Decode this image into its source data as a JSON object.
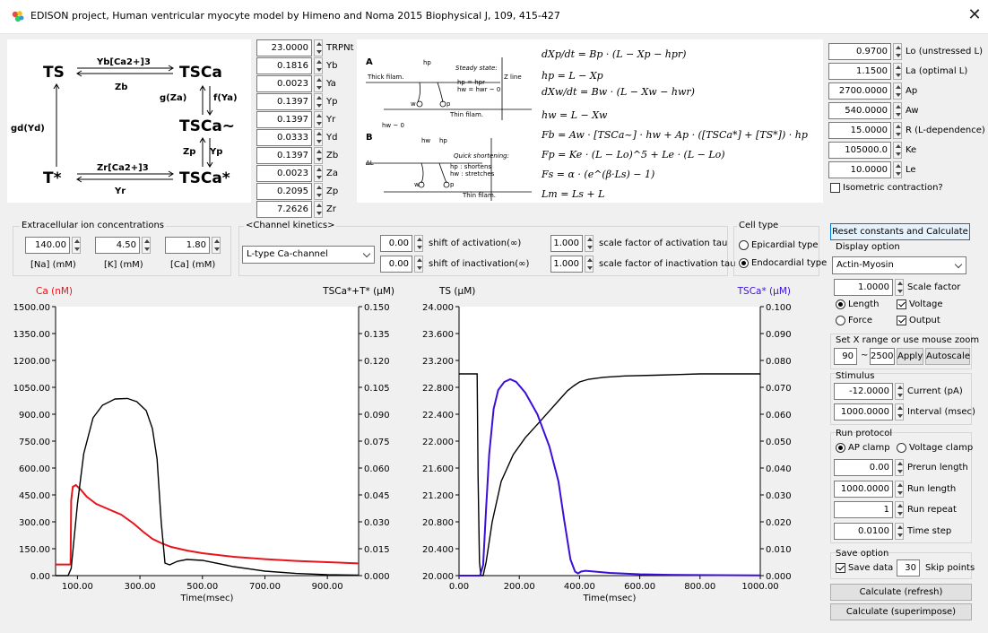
{
  "window": {
    "title": "EDISON project, Human ventricular myocyte model by Himeno and Noma 2015 Biophysical J, 109, 415-427",
    "close": "✕"
  },
  "scheme": {
    "ts": "TS",
    "tsca": "TSCa",
    "tsca_tilde": "TSCa~",
    "tsca_star": "TSCa*",
    "t_star": "T*",
    "yb": "Yb[Ca2+]3",
    "zb": "Zb",
    "gza": "g(Za)",
    "fya": "f(Ya)",
    "gd": "gd(Yd)",
    "zp": "Zp",
    "yp": "Yp",
    "zr": "Zr[Ca2+]3",
    "yr": "Yr"
  },
  "params": [
    {
      "value": "23.0000",
      "label": "TRPNt"
    },
    {
      "value": "0.1816",
      "label": "Yb"
    },
    {
      "value": "0.0023",
      "label": "Ya"
    },
    {
      "value": "0.1397",
      "label": "Yp"
    },
    {
      "value": "0.1397",
      "label": "Yr"
    },
    {
      "value": "0.0333",
      "label": "Yd"
    },
    {
      "value": "0.1397",
      "label": "Zb"
    },
    {
      "value": "0.0023",
      "label": "Za"
    },
    {
      "value": "0.2095",
      "label": "Zp"
    },
    {
      "value": "7.2626",
      "label": "Zr"
    }
  ],
  "diagram": {
    "a": "A",
    "b": "B",
    "thick": "Thick filam.",
    "thin_a": "Thin filam.",
    "thin_b": "Thin filam.",
    "zline": "Z line",
    "steady": "Steady state:",
    "hp_eq": "hp = hpr",
    "hw_eq": "hw = hwr ~ 0",
    "hp": "hp",
    "hw0": "hw ~ 0",
    "hw": "hw",
    "hp2": "hp",
    "quick": "Quick shortening:",
    "hp_short": "hp : shortens",
    "hw_stretch": "hw : stretches",
    "dl": "ΔL",
    "w": "w",
    "p": "p",
    "w2": "w",
    "p2": "p"
  },
  "equations": [
    "dXp/dt = Bp · (L − Xp − hpr)",
    "hp = L − Xp",
    "dXw/dt = Bw · (L − Xw − hwr)",
    "hw = L − Xw",
    "Fb = Aw · [TSCa~] · hw + Ap · ([TSCa*] + [TS*]) · hp",
    "Fp = Ke · (L − Lo)^5 + Le · (L − Lo)",
    "Fs = α · (e^(β·Ls) − 1)",
    "Lm = Ls + L"
  ],
  "right_params": [
    {
      "value": "0.9700",
      "label": "Lo (unstressed L)"
    },
    {
      "value": "1.1500",
      "label": "La (optimal L)"
    },
    {
      "value": "2700.0000",
      "label": "Ap"
    },
    {
      "value": "540.0000",
      "label": "Aw"
    },
    {
      "value": "15.0000",
      "label": "R (L-dependence)"
    },
    {
      "value": "105000.0",
      "label": "Ke"
    },
    {
      "value": "10.0000",
      "label": "Le"
    }
  ],
  "isometric": {
    "label": "Isometric contraction?",
    "checked": false
  },
  "ions": {
    "title": "Extracellular ion concentrations",
    "na": {
      "value": "140.00",
      "label": "[Na] (mM)"
    },
    "k": {
      "value": "4.50",
      "label": "[K] (mM)"
    },
    "ca": {
      "value": "1.80",
      "label": "[Ca] (mM)"
    }
  },
  "channel": {
    "title": "<Channel kinetics>",
    "selected": "L-type Ca-channel",
    "shift_act": {
      "value": "0.00",
      "label": "shift of activation(∞)"
    },
    "shift_inact": {
      "value": "0.00",
      "label": "shift of inactivation(∞)"
    },
    "scale_act": {
      "value": "1.000",
      "label": "scale factor of activation tau"
    },
    "scale_inact": {
      "value": "1.000",
      "label": "scale factor of inactivation tau"
    }
  },
  "celltype": {
    "title": "Cell type",
    "epi": "Epicardial type",
    "endo": "Endocardial type",
    "selected": "endo"
  },
  "controls": {
    "reset": "Reset constants and Calculate",
    "display_title": "Display option",
    "display_selected": "Actin-Myosin",
    "scale": {
      "value": "1.0000",
      "label": "Scale factor"
    },
    "length": "Length",
    "force": "Force",
    "voltage": "Voltage",
    "output": "Output",
    "xrange_title": "Set X range or use mouse zoom",
    "xmin": "90",
    "tilde": "~",
    "xmax": "2500",
    "apply": "Apply",
    "autoscale": "Autoscale",
    "stim_title": "Stimulus",
    "current": {
      "value": "-12.0000",
      "label": "Current (pA)"
    },
    "interval": {
      "value": "1000.0000",
      "label": "Interval (msec)"
    },
    "run_title": "Run protocol",
    "ap_clamp": "AP clamp",
    "v_clamp": "Voltage clamp",
    "prerun": {
      "value": "0.00",
      "label": "Prerun length"
    },
    "runlen": {
      "value": "1000.0000",
      "label": "Run length"
    },
    "repeat": {
      "value": "1",
      "label": "Run repeat"
    },
    "timestep": {
      "value": "0.0100",
      "label": "Time step"
    },
    "save_title": "Save option",
    "save_data": "Save data",
    "skip": "30",
    "skip_label": "Skip points",
    "calc_refresh": "Calculate (refresh)",
    "calc_super": "Calculate (superimpose)"
  },
  "chart_data": [
    {
      "type": "line",
      "xlabel": "Time(msec)",
      "ylabel_left": "Ca (nM)",
      "ylabel_right": "TSCa*+T* (µM)",
      "xlim": [
        30,
        1000
      ],
      "x_ticks": [
        "100.00",
        "300.00",
        "500.00",
        "700.00",
        "900.00"
      ],
      "ylim_left": [
        0,
        1500
      ],
      "y_ticks_left": [
        "0.00",
        "150.00",
        "300.00",
        "450.00",
        "600.00",
        "750.00",
        "900.00",
        "1050.00",
        "1200.00",
        "1350.00",
        "1500.00"
      ],
      "ylim_right": [
        0,
        0.15
      ],
      "y_ticks_right": [
        "0.000",
        "0.015",
        "0.030",
        "0.045",
        "0.060",
        "0.075",
        "0.090",
        "0.105",
        "0.120",
        "0.135",
        "0.150"
      ],
      "series": [
        {
          "name": "Ca (nM)",
          "color": "#e8141c",
          "axis": "left",
          "x": [
            30,
            78,
            80,
            85,
            95,
            110,
            130,
            160,
            200,
            240,
            280,
            310,
            340,
            370,
            400,
            450,
            500,
            600,
            700,
            800,
            900,
            1000
          ],
          "y": [
            62,
            62,
            420,
            495,
            505,
            480,
            440,
            400,
            370,
            340,
            290,
            245,
            205,
            180,
            160,
            140,
            125,
            105,
            92,
            82,
            75,
            68
          ]
        },
        {
          "name": "TSCa*+T* (µM)",
          "color": "#000000",
          "axis": "right",
          "x": [
            30,
            70,
            80,
            100,
            120,
            150,
            180,
            220,
            260,
            290,
            320,
            340,
            355,
            368,
            380,
            395,
            420,
            450,
            500,
            600,
            700,
            800,
            900,
            1000
          ],
          "y": [
            0,
            0,
            0.004,
            0.04,
            0.068,
            0.088,
            0.095,
            0.0985,
            0.0988,
            0.097,
            0.092,
            0.082,
            0.065,
            0.03,
            0.007,
            0.006,
            0.008,
            0.009,
            0.0085,
            0.005,
            0.0025,
            0.0012,
            0.0005,
            0.0003
          ]
        }
      ]
    },
    {
      "type": "line",
      "xlabel": "Time(msec)",
      "ylabel_left": "TS (µM)",
      "ylabel_right": "TSCa* (µM)",
      "xlim": [
        0,
        1000
      ],
      "x_ticks": [
        "0.00",
        "200.00",
        "400.00",
        "600.00",
        "800.00",
        "1000.00"
      ],
      "ylim_left": [
        20,
        24
      ],
      "y_ticks_left": [
        "20.000",
        "20.400",
        "20.800",
        "21.200",
        "21.600",
        "22.000",
        "22.400",
        "22.800",
        "23.200",
        "23.600",
        "24.000"
      ],
      "ylim_right": [
        0,
        0.1
      ],
      "y_ticks_right": [
        "0.000",
        "0.010",
        "0.020",
        "0.030",
        "0.040",
        "0.050",
        "0.060",
        "0.070",
        "0.080",
        "0.090",
        "0.100"
      ],
      "series": [
        {
          "name": "TS (µM)",
          "color": "#000000",
          "axis": "left",
          "x": [
            0,
            60,
            63,
            68,
            72,
            75,
            80,
            90,
            110,
            140,
            180,
            220,
            260,
            300,
            330,
            360,
            380,
            400,
            430,
            480,
            550,
            650,
            800,
            1000
          ],
          "y": [
            23.0,
            23.0,
            21.5,
            20.2,
            20.02,
            20.0,
            20.0,
            20.2,
            20.8,
            21.4,
            21.8,
            22.05,
            22.25,
            22.45,
            22.6,
            22.75,
            22.82,
            22.88,
            22.92,
            22.95,
            22.97,
            22.98,
            23.0,
            23.0
          ]
        },
        {
          "name": "TSCa* (µM)",
          "color": "#3a10d8",
          "axis": "right",
          "x": [
            0,
            70,
            80,
            90,
            100,
            115,
            130,
            150,
            170,
            190,
            220,
            260,
            300,
            330,
            350,
            370,
            385,
            395,
            405,
            420,
            450,
            500,
            600,
            700,
            800,
            1000
          ],
          "y": [
            0,
            0,
            0.004,
            0.025,
            0.045,
            0.062,
            0.069,
            0.072,
            0.073,
            0.072,
            0.068,
            0.06,
            0.048,
            0.035,
            0.02,
            0.006,
            0.0015,
            0.0008,
            0.0015,
            0.0018,
            0.0015,
            0.001,
            0.0005,
            0.0003,
            0.0002,
            0.0001
          ]
        }
      ]
    }
  ]
}
